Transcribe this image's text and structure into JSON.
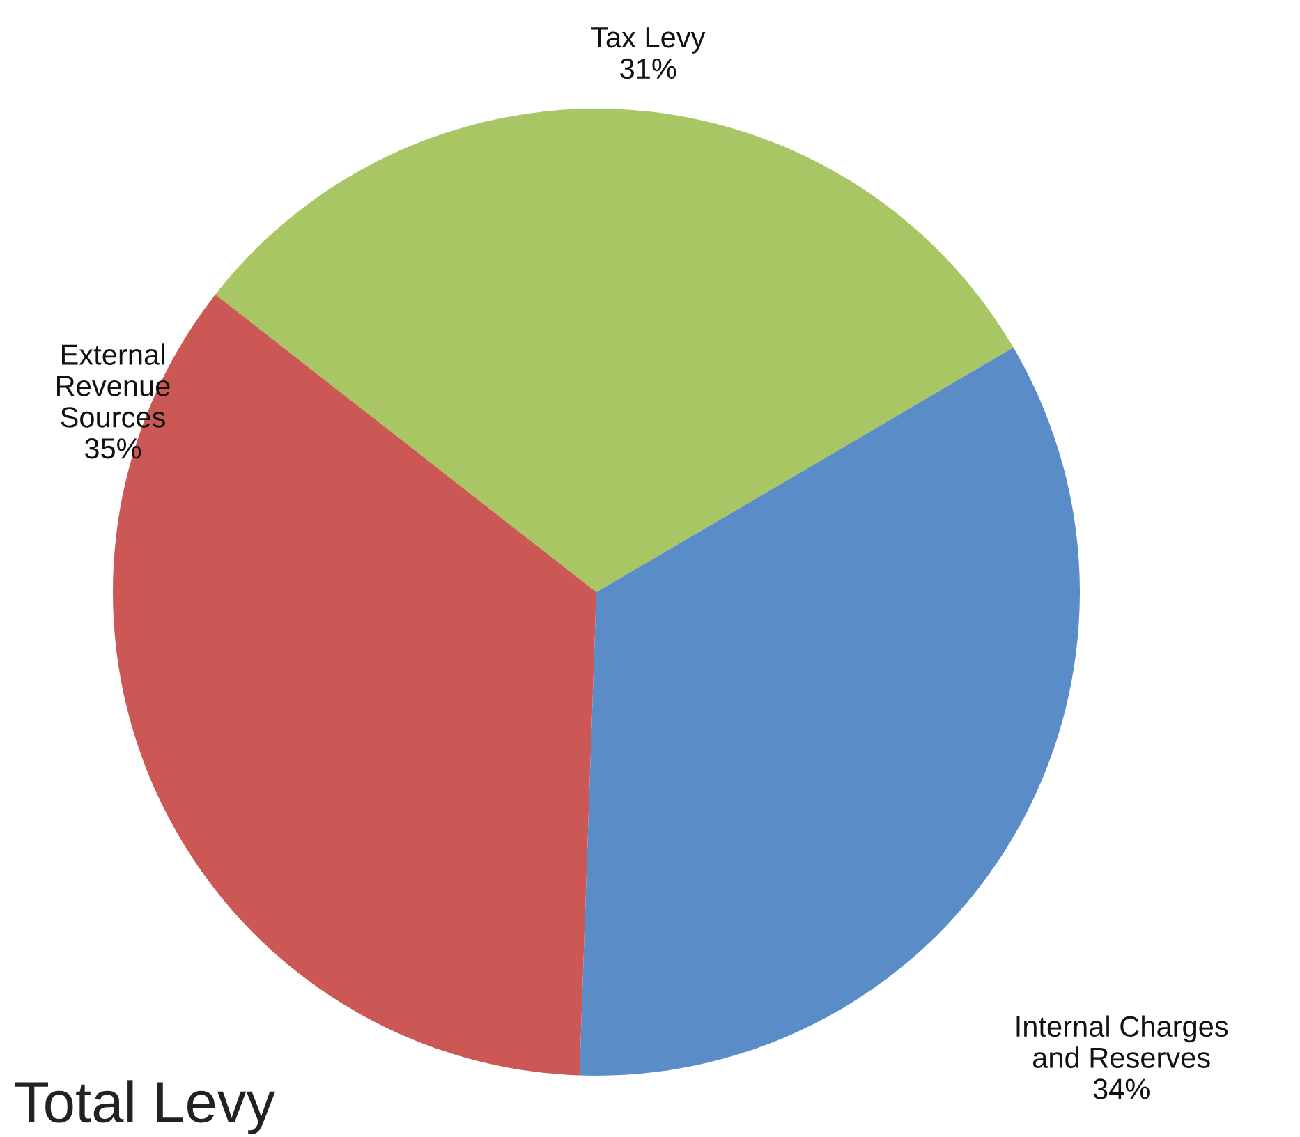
{
  "chart_data": {
    "type": "pie",
    "categories": [
      "Tax Levy",
      "Internal Charges and Reserves",
      "External Revenue Sources"
    ],
    "values": [
      31,
      34,
      35
    ],
    "colors": [
      "#a8c663",
      "#5a8cc8",
      "#cc5855"
    ],
    "value_labels": [
      "31%",
      "34%",
      "35%"
    ],
    "annotations": [
      "Total Levy"
    ]
  }
}
